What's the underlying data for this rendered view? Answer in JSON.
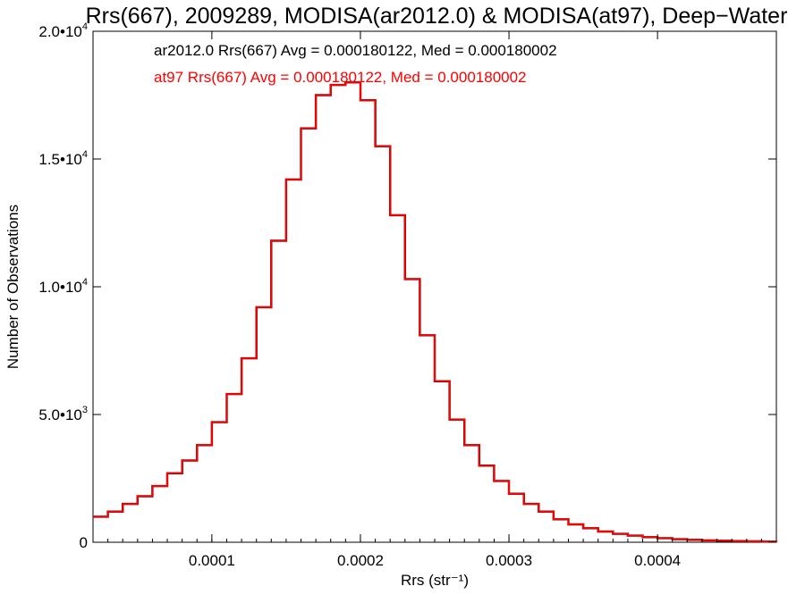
{
  "chart_data": {
    "type": "line",
    "title": "Rrs(667), 2009289, MODISA(ar2012.0) & MODISA(at97), Deep−Water",
    "xlabel": "Rrs (str⁻¹)",
    "ylabel": "Number of Observations",
    "xlim": [
      2e-05,
      0.00048
    ],
    "ylim": [
      0,
      20000
    ],
    "x_ticks": [
      0.0001,
      0.0002,
      0.0003,
      0.0004
    ],
    "x_tick_labels": [
      "0.0001",
      "0.0002",
      "0.0003",
      "0.0004"
    ],
    "y_ticks": [
      0,
      5000,
      10000,
      15000,
      20000
    ],
    "y_tick_labels": [
      {
        "base": "0",
        "exp": ""
      },
      {
        "base": "5.0•10",
        "exp": "3"
      },
      {
        "base": "1.0•10",
        "exp": "4"
      },
      {
        "base": "1.5•10",
        "exp": "4"
      },
      {
        "base": "2.0•10",
        "exp": "4"
      }
    ],
    "grid": false,
    "annotations": [
      {
        "text": "ar2012.0 Rrs(667) Avg = 0.000180122, Med = 0.000180002",
        "color": "#000000"
      },
      {
        "text": "at97 Rrs(667) Avg = 0.000180122, Med = 0.000180002",
        "color": "#ff0000"
      }
    ],
    "series": [
      {
        "color": "#000000",
        "x": [
          2e-05,
          3e-05,
          4e-05,
          5e-05,
          6e-05,
          7e-05,
          8e-05,
          9e-05,
          0.0001,
          0.00011,
          0.00012,
          0.00013,
          0.00014,
          0.00015,
          0.00016,
          0.00017,
          0.00018,
          0.00019,
          0.0002,
          0.00021,
          0.00022,
          0.00023,
          0.00024,
          0.00025,
          0.00026,
          0.00027,
          0.00028,
          0.00029,
          0.0003,
          0.00031,
          0.00032,
          0.00033,
          0.00034,
          0.00035,
          0.00036,
          0.00037,
          0.00038,
          0.00039,
          0.0004,
          0.00041,
          0.00042,
          0.00043,
          0.00044,
          0.00045,
          0.00046,
          0.00047,
          0.00048
        ],
        "values": [
          1000,
          1200,
          1500,
          1800,
          2200,
          2700,
          3200,
          3800,
          4700,
          5800,
          7200,
          9200,
          11800,
          14200,
          16200,
          17500,
          17900,
          18000,
          17300,
          15500,
          12800,
          10300,
          8100,
          6300,
          4800,
          3800,
          3000,
          2400,
          1900,
          1500,
          1200,
          900,
          700,
          550,
          420,
          330,
          260,
          200,
          160,
          120,
          95,
          75,
          60,
          45,
          35,
          25,
          20
        ]
      },
      {
        "color": "#ff0000",
        "x": [
          2e-05,
          3e-05,
          4e-05,
          5e-05,
          6e-05,
          7e-05,
          8e-05,
          9e-05,
          0.0001,
          0.00011,
          0.00012,
          0.00013,
          0.00014,
          0.00015,
          0.00016,
          0.00017,
          0.00018,
          0.00019,
          0.0002,
          0.00021,
          0.00022,
          0.00023,
          0.00024,
          0.00025,
          0.00026,
          0.00027,
          0.00028,
          0.00029,
          0.0003,
          0.00031,
          0.00032,
          0.00033,
          0.00034,
          0.00035,
          0.00036,
          0.00037,
          0.00038,
          0.00039,
          0.0004,
          0.00041,
          0.00042,
          0.00043,
          0.00044,
          0.00045,
          0.00046,
          0.00047,
          0.00048
        ],
        "values": [
          1000,
          1200,
          1500,
          1800,
          2200,
          2700,
          3200,
          3800,
          4700,
          5800,
          7200,
          9200,
          11800,
          14200,
          16200,
          17500,
          17900,
          18000,
          17300,
          15500,
          12800,
          10300,
          8100,
          6300,
          4800,
          3800,
          3000,
          2400,
          1900,
          1500,
          1200,
          900,
          700,
          550,
          420,
          330,
          260,
          200,
          160,
          120,
          95,
          75,
          60,
          45,
          35,
          25,
          20
        ]
      }
    ]
  }
}
